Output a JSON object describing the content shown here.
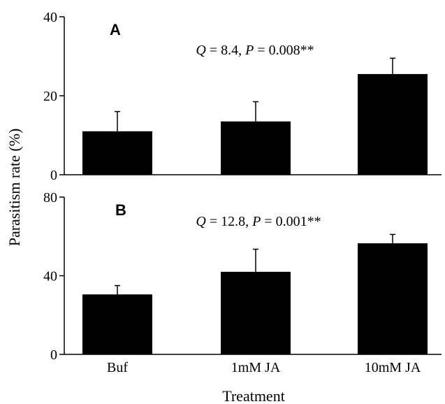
{
  "figure": {
    "ylabel": "Parasitism rate (%)",
    "xlabel": "Treatment"
  },
  "chart_data": [
    {
      "type": "bar",
      "panel_label": "A",
      "annotation": {
        "q_symbol": "Q",
        "q_rest": " = 8.4, ",
        "p_symbol": "P",
        "p_rest": " = 0.008**"
      },
      "categories": [
        "Buf",
        "1mM JA",
        "10mM JA"
      ],
      "values": [
        11,
        13.5,
        25.5
      ],
      "errors": [
        5,
        5,
        4
      ],
      "yticks": [
        0,
        20,
        40
      ],
      "ylim": [
        0,
        40
      ],
      "bar_color": "#000000"
    },
    {
      "type": "bar",
      "panel_label": "B",
      "annotation": {
        "q_symbol": "Q",
        "q_rest": " = 12.8, ",
        "p_symbol": "P",
        "p_rest": " = 0.001**"
      },
      "categories": [
        "Buf",
        "1mM JA",
        "10mM JA"
      ],
      "values": [
        30.5,
        42,
        56.5
      ],
      "errors": [
        4.5,
        11.5,
        4.5
      ],
      "yticks": [
        0,
        40,
        80
      ],
      "ylim": [
        0,
        80
      ],
      "bar_color": "#000000"
    }
  ]
}
